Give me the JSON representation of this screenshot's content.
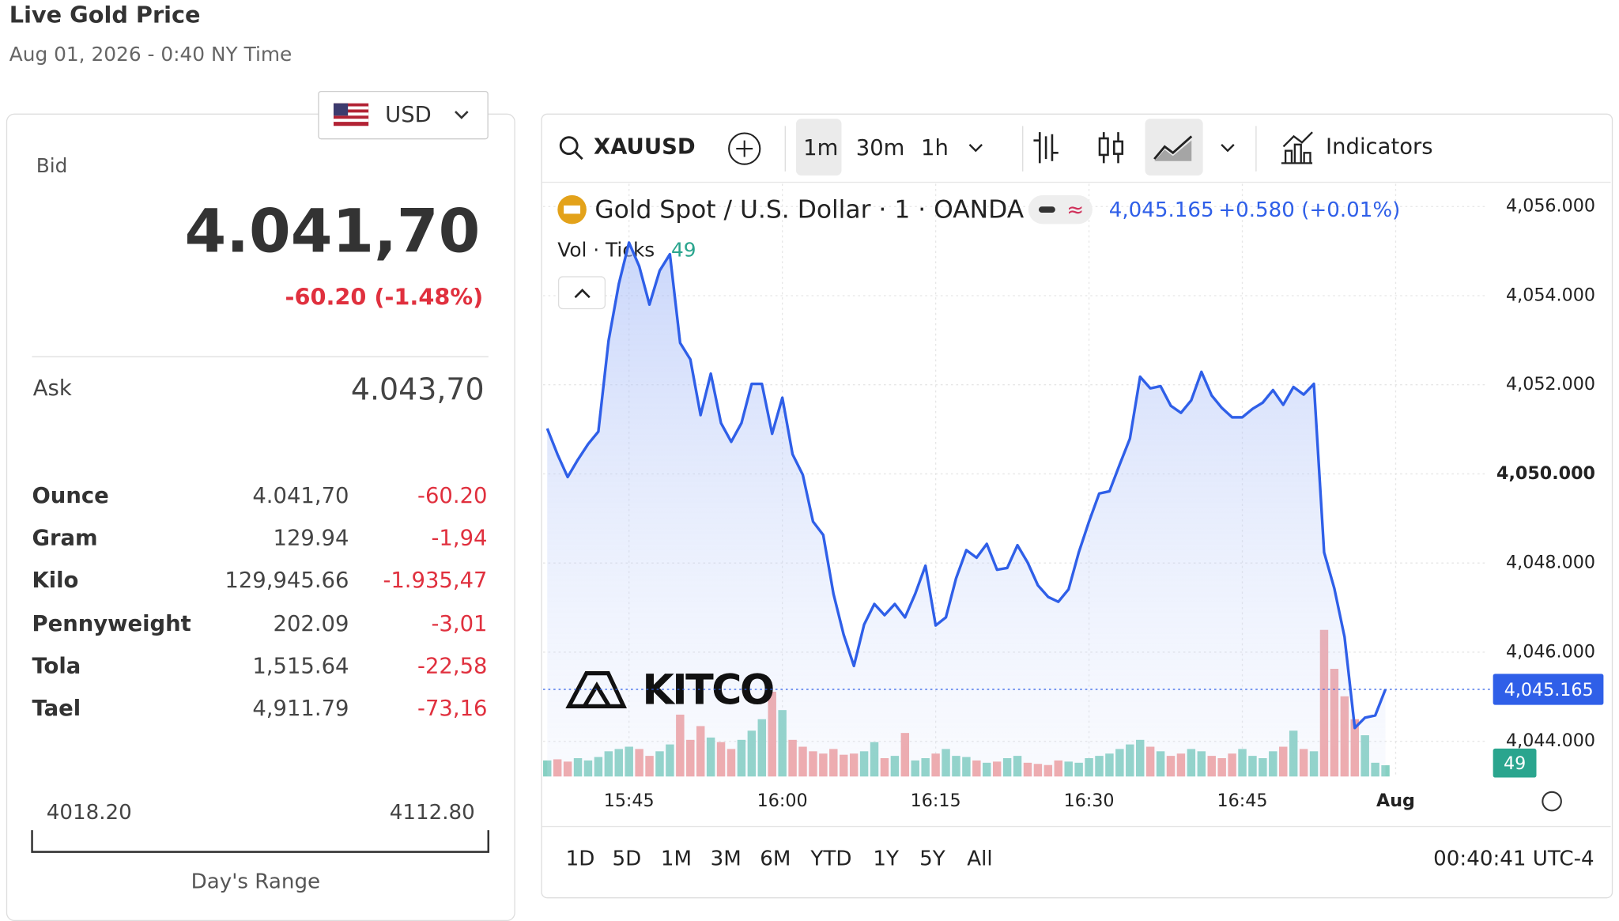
{
  "header": {
    "title": "Live Gold Price",
    "subtitle": "Aug 01, 2026 - 0:40 NY Time"
  },
  "panel": {
    "currency": "USD",
    "bid_label": "Bid",
    "bid": "4.041,70",
    "change": "-60.20 (-1.48%)",
    "ask_label": "Ask",
    "ask": "4.043,70",
    "rows": [
      [
        "Ounce",
        "4.041,70",
        "-60.20"
      ],
      [
        "Gram",
        "129.94",
        "-1,94"
      ],
      [
        "Kilo",
        "129,945.66",
        "-1.935,47"
      ],
      [
        "Pennyweight",
        "202.09",
        "-3,01"
      ],
      [
        "Tola",
        "1,515.64",
        "-22,58"
      ],
      [
        "Tael",
        "4,911.79",
        "-73,16"
      ]
    ],
    "range_low": "4018.20",
    "range_high": "4112.80",
    "range_label": "Day's Range"
  },
  "toolbar": {
    "symbol": "XAUUSD",
    "intervals": [
      "1m",
      "30m",
      "1h"
    ],
    "indicators": "Indicators"
  },
  "footer": {
    "ranges": [
      "1D",
      "5D",
      "1M",
      "3M",
      "6M",
      "YTD",
      "1Y",
      "5Y",
      "All"
    ],
    "clock": "00:40:41 UTC-4"
  },
  "chart_data": {
    "type": "line",
    "legend_change": "+0.580 (+0.01%)",
    "watermark": "KITCO",
    "last_price": {
      "value": 4045.165,
      "label": "4,045.165"
    },
    "categories": [
      null,
      null,
      null,
      null,
      null,
      null,
      null,
      null,
      "15:45",
      null,
      null,
      null,
      null,
      null,
      null,
      null,
      null,
      null,
      null,
      null,
      null,
      null,
      null,
      "16:00",
      null,
      null,
      null,
      null,
      null,
      null,
      null,
      null,
      null,
      null,
      null,
      null,
      null,
      null,
      "16:15",
      null,
      null,
      null,
      null,
      null,
      null,
      null,
      null,
      null,
      null,
      null,
      null,
      null,
      null,
      "16:30",
      null,
      null,
      null,
      null,
      null,
      null,
      null,
      null,
      null,
      null,
      null,
      null,
      null,
      null,
      "16:45",
      null,
      null,
      null,
      null,
      null,
      null,
      null,
      null,
      null,
      null,
      null,
      null,
      null,
      null,
      "Aug"
    ],
    "series": [
      {
        "name": "Gold Spot / U.S. Dollar · 1 · OANDA",
        "color": "#2f5fe8",
        "values": [
          4051.02,
          4050.44,
          4049.93,
          4050.32,
          4050.67,
          4050.95,
          4052.99,
          4054.26,
          4055.19,
          4054.66,
          4053.8,
          4054.56,
          4054.93,
          4052.94,
          4052.57,
          4051.32,
          4052.25,
          4051.14,
          4050.72,
          4051.14,
          4052.02,
          4052.02,
          4050.9,
          4051.71,
          4050.44,
          4049.98,
          4048.93,
          4048.63,
          4047.31,
          4046.39,
          4045.69,
          4046.62,
          4047.08,
          4046.83,
          4047.08,
          4046.78,
          4047.31,
          4047.94,
          4046.6,
          4046.78,
          4047.66,
          4048.29,
          4048.12,
          4048.43,
          4047.85,
          4047.89,
          4048.4,
          4048.01,
          4047.5,
          4047.24,
          4047.13,
          4047.41,
          4048.24,
          4048.93,
          4049.56,
          4049.61,
          4050.21,
          4050.79,
          4052.18,
          4051.92,
          4051.97,
          4051.53,
          4051.37,
          4051.65,
          4052.29,
          4051.76,
          4051.48,
          4051.27,
          4051.27,
          4051.46,
          4051.6,
          4051.88,
          4051.55,
          4051.95,
          4051.78,
          4052.02,
          4048.24,
          4047.43,
          4046.34,
          4044.3,
          4044.53,
          4044.58,
          4045.165,
          null
        ]
      },
      {
        "name": "Vol · Ticks",
        "up_color": "#86d0c2",
        "down_color": "#f1a2a2",
        "values": [
          70,
          75,
          65,
          80,
          70,
          85,
          110,
          120,
          130,
          120,
          90,
          110,
          140,
          270,
          160,
          220,
          170,
          150,
          120,
          160,
          200,
          250,
          370,
          290,
          160,
          130,
          110,
          100,
          120,
          95,
          100,
          110,
          150,
          80,
          90,
          190,
          70,
          80,
          100,
          120,
          90,
          85,
          70,
          60,
          65,
          80,
          90,
          60,
          55,
          50,
          70,
          65,
          60,
          80,
          90,
          100,
          120,
          140,
          160,
          130,
          110,
          90,
          100,
          120,
          110,
          90,
          80,
          100,
          120,
          90,
          80,
          110,
          130,
          200,
          120,
          110,
          640,
          470,
          350,
          250,
          180,
          60,
          49,
          null
        ]
      }
    ],
    "ylim": [
      4043.21,
      4056.51
    ],
    "yticks": [
      {
        "value": 4044,
        "label": "4,044.000"
      },
      {
        "value": 4046,
        "label": "4,046.000"
      },
      {
        "value": 4048,
        "label": "4,048.000"
      },
      {
        "value": 4050,
        "label": "4,050.000"
      },
      {
        "value": 4052,
        "label": "4,052.000"
      },
      {
        "value": 4054,
        "label": "4,054.000"
      },
      {
        "value": 4056,
        "label": "4,056.000"
      }
    ],
    "grid": true
  }
}
